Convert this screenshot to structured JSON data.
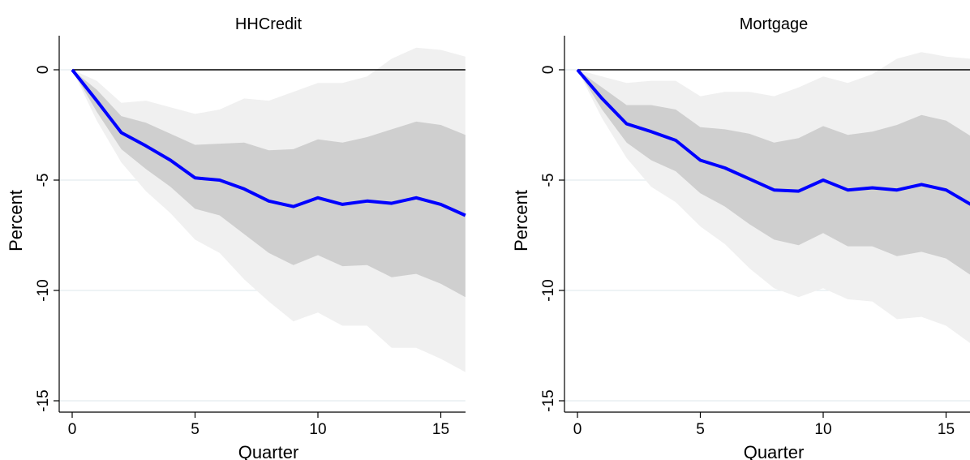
{
  "chart_data": [
    {
      "type": "line",
      "title": "HHCredit",
      "xlabel": "Quarter",
      "ylabel": "Percent",
      "xlim": [
        0,
        16
      ],
      "ylim": [
        -15,
        1
      ],
      "x_ticks": [
        "0",
        "5",
        "10",
        "15"
      ],
      "y_ticks": [
        "0",
        "-5",
        "-10",
        "-15"
      ],
      "grid": true,
      "colors": {
        "irf": "#0000ff",
        "inner_band": "#cfcfcf",
        "outer_band": "#f0f0f0",
        "zero_line": "#000000"
      },
      "x": [
        0,
        1,
        2,
        3,
        4,
        5,
        6,
        7,
        8,
        9,
        10,
        11,
        12,
        13,
        14,
        15,
        16
      ],
      "series": [
        {
          "values": [
            0,
            -1.4,
            -2.85,
            -3.45,
            -4.1,
            -4.9,
            -5.0,
            -5.4,
            -5.95,
            -6.2,
            -5.8,
            -6.1,
            -5.95,
            -6.05,
            -5.8,
            -6.1,
            -6.6
          ]
        }
      ],
      "bands": [
        {
          "upper": [
            0,
            -0.5,
            -1.5,
            -1.4,
            -1.7,
            -2.0,
            -1.8,
            -1.3,
            -1.4,
            -1.0,
            -0.6,
            -0.6,
            -0.3,
            0.5,
            1.0,
            0.9,
            0.6
          ],
          "lower": [
            0,
            -2.3,
            -4.2,
            -5.5,
            -6.5,
            -7.7,
            -8.3,
            -9.5,
            -10.5,
            -11.4,
            -11.0,
            -11.6,
            -11.6,
            -12.6,
            -12.6,
            -13.1,
            -13.7
          ]
        },
        {
          "upper": [
            0,
            -0.9,
            -2.1,
            -2.4,
            -2.9,
            -3.4,
            -3.35,
            -3.3,
            -3.65,
            -3.6,
            -3.15,
            -3.3,
            -3.05,
            -2.7,
            -2.35,
            -2.5,
            -2.95
          ],
          "lower": [
            0,
            -1.9,
            -3.6,
            -4.5,
            -5.3,
            -6.3,
            -6.6,
            -7.45,
            -8.3,
            -8.85,
            -8.4,
            -8.9,
            -8.85,
            -9.4,
            -9.25,
            -9.7,
            -10.3
          ]
        }
      ]
    },
    {
      "type": "line",
      "title": "Mortgage",
      "xlabel": "Quarter",
      "ylabel": "Percent",
      "xlim": [
        0,
        16
      ],
      "ylim": [
        -15,
        1
      ],
      "x_ticks": [
        "0",
        "5",
        "10",
        "15"
      ],
      "y_ticks": [
        "0",
        "-5",
        "-10",
        "-15"
      ],
      "grid": true,
      "colors": {
        "irf": "#0000ff",
        "inner_band": "#cfcfcf",
        "outer_band": "#f0f0f0",
        "zero_line": "#000000"
      },
      "x": [
        0,
        1,
        2,
        3,
        4,
        5,
        6,
        7,
        8,
        9,
        10,
        11,
        12,
        13,
        14,
        15,
        16
      ],
      "series": [
        {
          "values": [
            0,
            -1.3,
            -2.45,
            -2.8,
            -3.2,
            -4.1,
            -4.45,
            -4.95,
            -5.45,
            -5.5,
            -5.0,
            -5.45,
            -5.35,
            -5.45,
            -5.2,
            -5.45,
            -6.1
          ]
        }
      ],
      "bands": [
        {
          "upper": [
            0,
            -0.3,
            -0.6,
            -0.5,
            -0.5,
            -1.2,
            -1.0,
            -1.0,
            -1.2,
            -0.8,
            -0.3,
            -0.6,
            -0.2,
            0.5,
            0.8,
            0.6,
            0.5
          ],
          "lower": [
            0,
            -2.2,
            -4.0,
            -5.3,
            -6.0,
            -7.1,
            -7.9,
            -9.0,
            -9.9,
            -10.3,
            -9.9,
            -10.4,
            -10.5,
            -11.3,
            -11.2,
            -11.6,
            -12.4
          ]
        },
        {
          "upper": [
            0,
            -0.8,
            -1.6,
            -1.6,
            -1.8,
            -2.6,
            -2.7,
            -2.9,
            -3.3,
            -3.1,
            -2.55,
            -2.95,
            -2.8,
            -2.5,
            -2.05,
            -2.3,
            -3.0
          ],
          "lower": [
            0,
            -1.8,
            -3.3,
            -4.1,
            -4.6,
            -5.6,
            -6.2,
            -7.0,
            -7.7,
            -7.95,
            -7.4,
            -8.0,
            -8.0,
            -8.45,
            -8.25,
            -8.55,
            -9.3
          ]
        }
      ]
    }
  ]
}
